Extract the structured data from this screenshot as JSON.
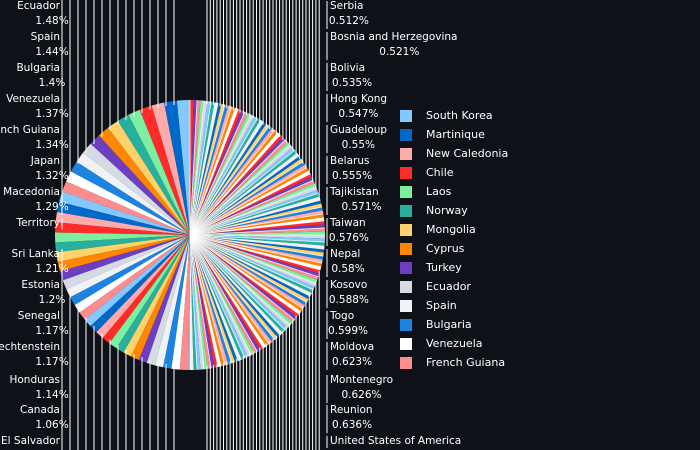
{
  "chart_data": {
    "type": "pie",
    "title": "",
    "slices": [
      {
        "label": "South Korea",
        "color": "#83c9ff"
      },
      {
        "label": "Martinique",
        "color": "#0068c9"
      },
      {
        "label": "New Caledonia",
        "color": "#ffabab"
      },
      {
        "label": "Chile",
        "color": "#ff2b2b"
      },
      {
        "label": "Laos",
        "color": "#7defa1"
      },
      {
        "label": "Norway",
        "color": "#29b09d"
      },
      {
        "label": "Mongolia",
        "color": "#ffd16a"
      },
      {
        "label": "Cyprus",
        "color": "#ff8700"
      },
      {
        "label": "Turkey",
        "color": "#6d3fc0"
      },
      {
        "label": "Ecuador",
        "value": 1.48,
        "value_label": "1.48%",
        "color": "#d5dae5"
      },
      {
        "label": "Spain",
        "value": 1.44,
        "value_label": "1.44%",
        "color": "#f0f2f6"
      },
      {
        "label": "Bulgaria",
        "value": 1.4,
        "value_label": "1.4%",
        "color": "#1c83e1"
      },
      {
        "label": "Venezuela",
        "value": 1.37,
        "value_label": "1.37%",
        "color": "#ffffff"
      },
      {
        "label": "French Guiana",
        "value": 1.34,
        "value_label": "1.34%",
        "color": "#ff8c8c"
      },
      {
        "label": "Japan",
        "value": 1.32,
        "value_label": "1.32%"
      },
      {
        "label": "Macedonia",
        "value": 1.29,
        "value_label": "1.29%"
      },
      {
        "label": "Territory"
      },
      {
        "label": "Sri Lanka",
        "value": 1.21,
        "value_label": "1.21%"
      },
      {
        "label": "Estonia",
        "value": 1.2,
        "value_label": "1.2%"
      },
      {
        "label": "Senegal",
        "value": 1.17,
        "value_label": "1.17%"
      },
      {
        "label": "Liechtenstein",
        "value": 1.17,
        "value_label": "1.17%"
      },
      {
        "label": "Honduras",
        "value": 1.14,
        "value_label": "1.14%"
      },
      {
        "label": "Canada",
        "value": 1.06,
        "value_label": "1.06%"
      },
      {
        "label": "El Salvador"
      },
      {
        "label": "United States of America"
      },
      {
        "label": "Reunion",
        "value": 0.636,
        "value_label": "0.636%"
      },
      {
        "label": "Montenegro",
        "value": 0.626,
        "value_label": "0.626%"
      },
      {
        "label": "Moldova",
        "value": 0.623,
        "value_label": "0.623%"
      },
      {
        "label": "Togo",
        "value": 0.599,
        "value_label": "0.599%"
      },
      {
        "label": "Kosovo",
        "value": 0.588,
        "value_label": "0.588%"
      },
      {
        "label": "Nepal",
        "value": 0.58,
        "value_label": "0.58%"
      },
      {
        "label": "Taiwan",
        "value": 0.576,
        "value_label": "0.576%"
      },
      {
        "label": "Tajikistan",
        "value": 0.571,
        "value_label": "0.571%"
      },
      {
        "label": "Belarus",
        "value": 0.555,
        "value_label": "0.555%"
      },
      {
        "label": "Guadeloup",
        "value": 0.55,
        "value_label": "0.55%"
      },
      {
        "label": "Hong Kong",
        "value": 0.547,
        "value_label": "0.547%"
      },
      {
        "label": "Bolivia",
        "value": 0.535,
        "value_label": "0.535%"
      },
      {
        "label": "Bosnia and Herzegovina",
        "value": 0.521,
        "value_label": "0.521%"
      },
      {
        "label": "Serbia",
        "value": 0.512,
        "value_label": "0.512%"
      }
    ],
    "legend": {
      "placement": "right",
      "entries": [
        "South Korea",
        "Martinique",
        "New Caledonia",
        "Chile",
        "Laos",
        "Norway",
        "Mongolia",
        "Cyprus",
        "Turkey",
        "Ecuador",
        "Spain",
        "Bulgaria",
        "Venezuela",
        "French Guiana"
      ]
    },
    "palette": [
      "#83c9ff",
      "#0068c9",
      "#ffabab",
      "#ff2b2b",
      "#7defa1",
      "#29b09d",
      "#ffd16a",
      "#ff8700",
      "#6d3fc0",
      "#d5dae5",
      "#f0f2f6",
      "#1c83e1",
      "#ffffff",
      "#ff8c8c"
    ]
  },
  "colors": {
    "background": "#0e1117",
    "text": "#ffffff"
  }
}
